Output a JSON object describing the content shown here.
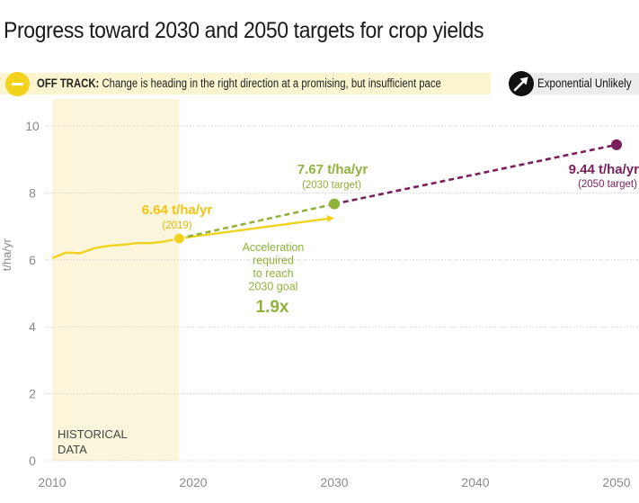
{
  "title": "Progress toward 2030 and 2050 targets for crop yields",
  "status": {
    "label": "OFF TRACK:",
    "description": "Change is heading in the right direction at a promising, but insufficient pace",
    "icon": "off-track-icon",
    "color": "#f2d21d"
  },
  "trend": {
    "label": "Exponential Unlikely",
    "icon": "arrow-up-right-icon"
  },
  "colors": {
    "historical": "#f2d21d",
    "target_2030": "#8fb339",
    "target_2050": "#7a1f5c",
    "historical_band": "#fbf5dc"
  },
  "chart_data": {
    "type": "line",
    "ylabel": "t/ha/yr",
    "xlim": [
      2010,
      2050
    ],
    "ylim": [
      0,
      10
    ],
    "x_ticks": [
      2010,
      2020,
      2030,
      2040,
      2050
    ],
    "y_ticks": [
      0,
      2,
      4,
      6,
      8,
      10
    ],
    "historical_band_label": [
      "HISTORICAL",
      "DATA"
    ],
    "series": [
      {
        "role": "historical",
        "x": [
          2010,
          2011,
          2012,
          2013,
          2014,
          2015,
          2016,
          2017,
          2018,
          2019
        ],
        "values": [
          6.05,
          6.22,
          6.2,
          6.35,
          6.42,
          6.45,
          6.5,
          6.5,
          6.55,
          6.64
        ],
        "style": "solid"
      },
      {
        "role": "current-trend",
        "x": [
          2019,
          2030
        ],
        "values": [
          6.64,
          7.25
        ],
        "style": "solid-arrow"
      },
      {
        "role": "path-to-2030",
        "x": [
          2019,
          2030
        ],
        "values": [
          6.64,
          7.67
        ],
        "style": "dashed"
      },
      {
        "role": "path-to-2050",
        "x": [
          2030,
          2050
        ],
        "values": [
          7.67,
          9.44
        ],
        "style": "dashed"
      }
    ],
    "annotations": {
      "current": {
        "value": "6.64 t/ha/yr",
        "note": "(2019)"
      },
      "target_2030": {
        "value": "7.67 t/ha/yr",
        "note": "(2030 target)"
      },
      "target_2050": {
        "value": "9.44 t/ha/yr",
        "note": "(2050 target)"
      },
      "acceleration": {
        "lines": [
          "Acceleration",
          "required",
          "to reach",
          "2030 goal"
        ],
        "value": "1.9x"
      }
    }
  }
}
